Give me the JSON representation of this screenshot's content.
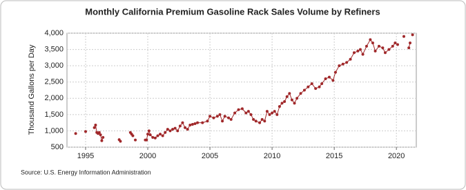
{
  "chart_data": {
    "type": "line",
    "title": "Monthly California Premium Gasoline Rack Sales Volume by Refiners",
    "y_label": "Thousand Gallons per Day",
    "source": "Source: U.S. Energy Information Administration",
    "color": "#a0282a",
    "grid": true,
    "xlim": [
      1993.5,
      2021.6
    ],
    "xticks": [
      1995,
      2000,
      2005,
      2010,
      2015,
      2020
    ],
    "ylim": [
      500,
      4000
    ],
    "yticks": [
      {
        "value": 500,
        "label": "500"
      },
      {
        "value": 1000,
        "label": "1,000"
      },
      {
        "value": 1500,
        "label": "1,500"
      },
      {
        "value": 2000,
        "label": "2,000"
      },
      {
        "value": 2500,
        "label": "2,500"
      },
      {
        "value": 3000,
        "label": "3,000"
      },
      {
        "value": 3500,
        "label": "3,500"
      },
      {
        "value": 4000,
        "label": "4,000"
      }
    ],
    "x": [
      1994.2,
      1994.6,
      1995.0,
      1995.3,
      1995.7,
      1995.8,
      1995.9,
      1996.0,
      1996.1,
      1996.2,
      1996.3,
      1996.4,
      1997.0,
      1997.7,
      1997.8,
      1998.2,
      1998.6,
      1998.7,
      1998.8,
      1998.9,
      1999.0,
      1999.4,
      1999.8,
      1999.9,
      2000.0,
      2000.1,
      2000.2,
      2000.4,
      2000.6,
      2000.8,
      2001.0,
      2001.2,
      2001.4,
      2001.6,
      2001.8,
      2002.0,
      2002.2,
      2002.4,
      2002.6,
      2002.8,
      2003.0,
      2003.2,
      2003.4,
      2003.6,
      2003.8,
      2004.0,
      2004.4,
      2004.8,
      2005.0,
      2005.3,
      2005.6,
      2005.8,
      2006.0,
      2006.2,
      2006.5,
      2006.7,
      2007.0,
      2007.3,
      2007.6,
      2007.9,
      2008.1,
      2008.3,
      2008.5,
      2008.7,
      2009.0,
      2009.2,
      2009.4,
      2009.6,
      2009.8,
      2010.0,
      2010.2,
      2010.4,
      2010.6,
      2010.8,
      2011.0,
      2011.2,
      2011.4,
      2011.6,
      2011.8,
      2012.0,
      2012.3,
      2012.6,
      2012.9,
      2013.2,
      2013.5,
      2013.8,
      2014.0,
      2014.3,
      2014.6,
      2014.9,
      2015.1,
      2015.4,
      2015.7,
      2016.0,
      2016.3,
      2016.6,
      2016.9,
      2017.1,
      2017.3,
      2017.6,
      2017.9,
      2018.1,
      2018.3,
      2018.6,
      2018.9,
      2019.1,
      2019.4,
      2019.7,
      2019.9,
      2020.1,
      2020.3,
      2020.6,
      2020.8,
      2021.0,
      2021.1,
      2021.2,
      2021.3
    ],
    "values": [
      920,
      null,
      980,
      null,
      1100,
      1180,
      950,
      920,
      950,
      880,
      700,
      800,
      null,
      730,
      680,
      null,
      950,
      900,
      850,
      null,
      720,
      null,
      720,
      720,
      900,
      1000,
      880,
      800,
      780,
      850,
      900,
      850,
      950,
      1050,
      1000,
      1050,
      1080,
      1000,
      1150,
      1250,
      1100,
      1050,
      1180,
      1200,
      1220,
      1250,
      1250,
      1300,
      1450,
      1400,
      1450,
      1500,
      1300,
      1450,
      1400,
      1350,
      1550,
      1650,
      1680,
      1550,
      1600,
      1500,
      1350,
      1300,
      1250,
      1350,
      1300,
      1600,
      1500,
      1550,
      1600,
      1500,
      1750,
      1850,
      1900,
      2050,
      2150,
      1950,
      1850,
      2000,
      2150,
      2250,
      2350,
      2450,
      2300,
      2350,
      2450,
      2600,
      2650,
      2550,
      2800,
      3000,
      3050,
      3100,
      3200,
      3400,
      3450,
      3500,
      3350,
      3600,
      3800,
      3700,
      3450,
      3600,
      3550,
      3400,
      3500,
      3600,
      3700,
      3650,
      null,
      3900,
      null,
      3550,
      3700,
      null,
      3950
    ]
  }
}
